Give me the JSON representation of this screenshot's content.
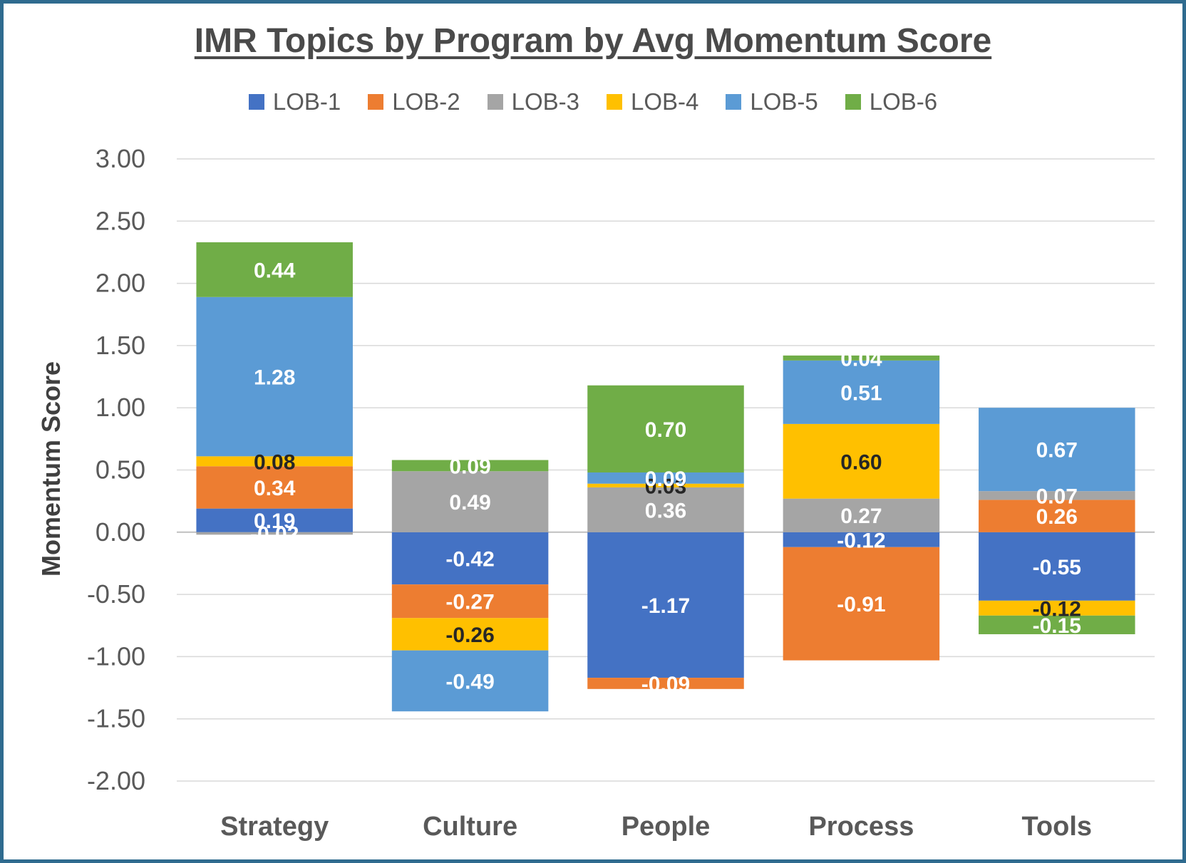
{
  "chart_data": {
    "type": "bar",
    "stacked": true,
    "title": "IMR Topics by Program by Avg Momentum Score",
    "ylabel": "Momentum Score",
    "xlabel": "",
    "ylim": [
      -2.0,
      3.0
    ],
    "yticks": [
      "3.00",
      "2.50",
      "2.00",
      "1.50",
      "1.00",
      "0.50",
      "0.00",
      "-0.50",
      "-1.00",
      "-1.50",
      "-2.00"
    ],
    "grid": true,
    "legend_position": "top",
    "categories": [
      "Strategy",
      "Culture",
      "People",
      "Process",
      "Tools"
    ],
    "series": [
      {
        "name": "LOB-1",
        "color": "#4472c4",
        "label_color": "#ffffff",
        "values": [
          0.19,
          -0.42,
          -1.17,
          -0.12,
          -0.55
        ],
        "labels": [
          "0.19",
          "-0.42",
          "-1.17",
          "-0.12",
          "-0.55"
        ]
      },
      {
        "name": "LOB-2",
        "color": "#ed7d31",
        "label_color": "#ffffff",
        "values": [
          0.34,
          -0.27,
          -0.09,
          -0.91,
          0.26
        ],
        "labels": [
          "0.34",
          "-0.27",
          "-0.09",
          "-0.91",
          "0.26"
        ]
      },
      {
        "name": "LOB-3",
        "color": "#a5a5a5",
        "label_color": "#ffffff",
        "values": [
          -0.02,
          0.49,
          0.36,
          0.27,
          0.07
        ],
        "labels": [
          "-0.02",
          "0.49",
          "0.36",
          "0.27",
          "0.07"
        ]
      },
      {
        "name": "LOB-4",
        "color": "#ffc000",
        "label_color": "#262626",
        "values": [
          0.08,
          -0.26,
          0.03,
          0.6,
          -0.12
        ],
        "labels": [
          "0.08",
          "-0.26",
          "0.03",
          "0.60",
          "-0.12"
        ]
      },
      {
        "name": "LOB-5",
        "color": "#5b9bd5",
        "label_color": "#ffffff",
        "values": [
          1.28,
          -0.49,
          0.09,
          0.51,
          0.67
        ],
        "labels": [
          "1.28",
          "-0.49",
          "0.09",
          "0.51",
          "0.67"
        ]
      },
      {
        "name": "LOB-6",
        "color": "#70ad47",
        "label_color": "#ffffff",
        "values": [
          0.44,
          0.09,
          0.7,
          0.04,
          -0.15
        ],
        "labels": [
          "0.44",
          "0.09",
          "0.70",
          "0.04",
          "-0.15"
        ]
      }
    ]
  }
}
